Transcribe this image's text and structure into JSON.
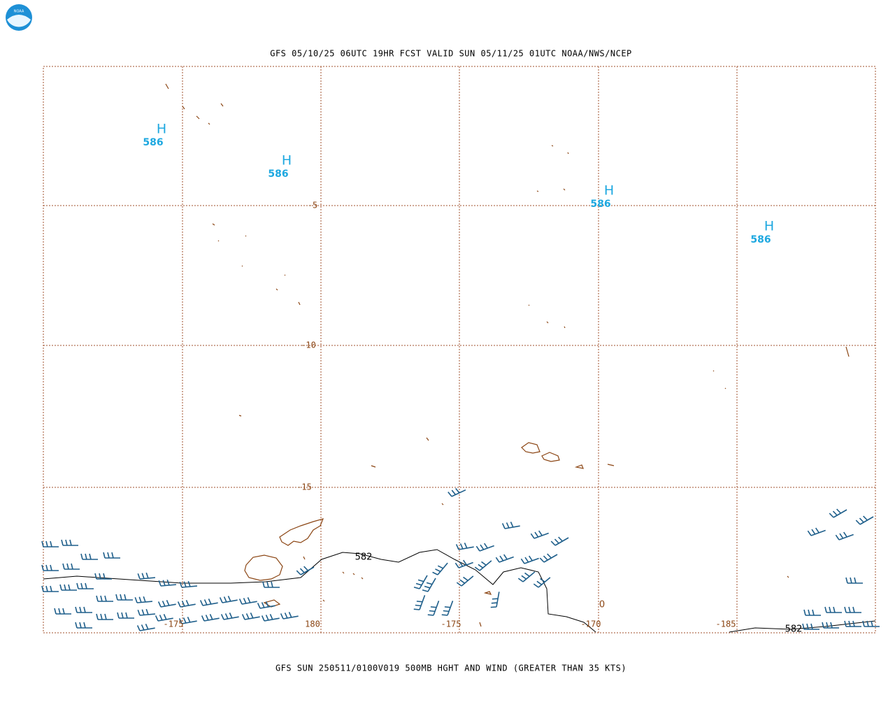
{
  "logo": {
    "text": "NOAA"
  },
  "header": {
    "title": "GFS 05/10/25 06UTC 19HR FCST VALID SUN 05/11/25 01UTC NOAA/NWS/NCEP"
  },
  "grid": {
    "lat_labels": [
      "-5",
      "-10",
      "-15"
    ],
    "lon_labels": [
      "-175",
      "180",
      "-175",
      "-170",
      "-185"
    ]
  },
  "highs": [
    {
      "symbol": "H",
      "value": "586"
    },
    {
      "symbol": "H",
      "value": "586"
    },
    {
      "symbol": "H",
      "value": "586"
    },
    {
      "symbol": "H",
      "value": "586"
    }
  ],
  "contour_labels": [
    "582",
    "582",
    "0"
  ],
  "footer": {
    "caption": "GFS SUN 250511/0100V019 500MB HGHT AND WIND (GREATER THAN 35 KTS)"
  }
}
